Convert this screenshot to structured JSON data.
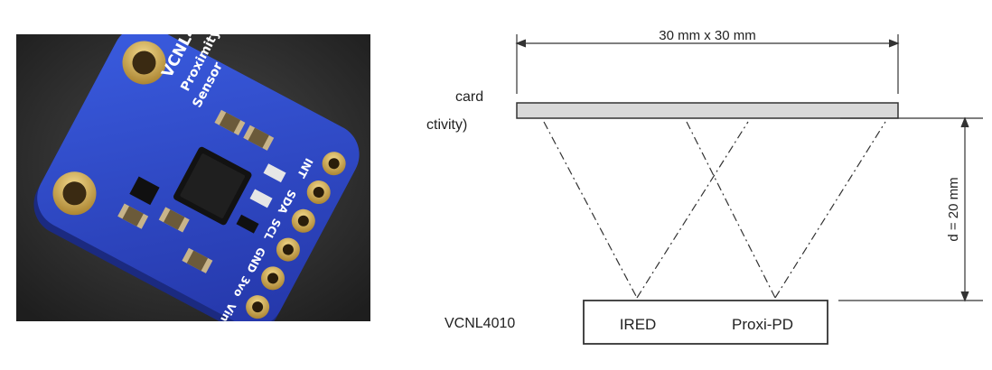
{
  "board": {
    "chip_label": "VCNL4010",
    "name_line1": "Proximity",
    "name_line2": "Sensor",
    "pins": [
      "INT",
      "SDA",
      "SCL",
      "GND",
      "3vo",
      "Vin"
    ]
  },
  "diagram": {
    "card_size": "30 mm x 30 mm",
    "card_label_line1": "card",
    "card_label_line2": "ctivity)",
    "distance_label": "d = 20 mm",
    "device_label": "VCNL4010",
    "emitter_label": "IRED",
    "detector_label": "Proxi-PD"
  },
  "colors": {
    "board_blue": "#2f4fd0",
    "photo_background": "#2b2b2b",
    "card_fill": "#d9d9d9",
    "gold": "#d7b25a"
  }
}
